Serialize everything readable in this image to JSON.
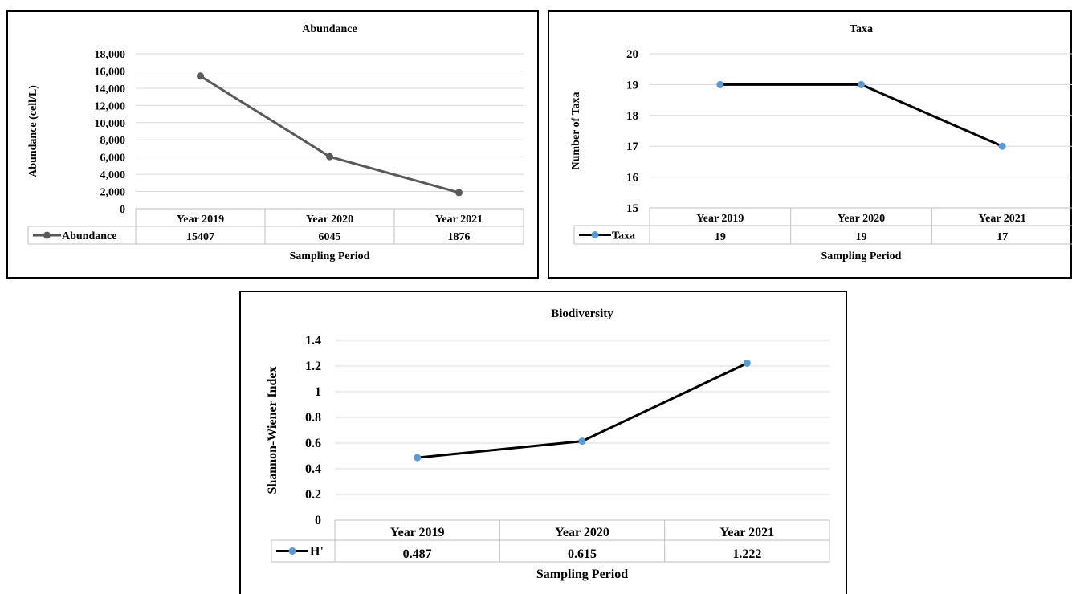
{
  "chart_data": [
    {
      "type": "line",
      "title": "Abundance",
      "xlabel": "Sampling Period",
      "ylabel": "Abundance (cell/L)",
      "categories": [
        "Year 2019",
        "Year 2020",
        "Year 2021"
      ],
      "ylim": [
        0,
        18000
      ],
      "yticks": [
        "0",
        "2,000",
        "4,000",
        "6,000",
        "8,000",
        "10,000",
        "12,000",
        "14,000",
        "16,000",
        "18,000"
      ],
      "series": [
        {
          "name": "Abundance",
          "values": [
            15407,
            6045,
            1876
          ],
          "table_values": [
            "15407",
            "6045",
            "1876"
          ],
          "color": "#595959",
          "marker_color": "#595959"
        }
      ],
      "grid": true,
      "legend": "data table"
    },
    {
      "type": "line",
      "title": "Taxa",
      "xlabel": "Sampling Period",
      "ylabel": "Number of Taxa",
      "categories": [
        "Year 2019",
        "Year 2020",
        "Year 2021"
      ],
      "ylim": [
        15,
        20
      ],
      "yticks": [
        "15",
        "16",
        "17",
        "18",
        "19",
        "20"
      ],
      "series": [
        {
          "name": "Taxa",
          "values": [
            19,
            19,
            17
          ],
          "table_values": [
            "19",
            "19",
            "17"
          ],
          "color": "#000000",
          "marker_color": "#5b9bd5"
        }
      ],
      "grid": true,
      "legend": "data table"
    },
    {
      "type": "line",
      "title": "Biodiversity",
      "xlabel": "Sampling Period",
      "ylabel": "Shannon-Wiener Index",
      "categories": [
        "Year 2019",
        "Year 2020",
        "Year 2021"
      ],
      "ylim": [
        0,
        1.4
      ],
      "yticks": [
        "0",
        "0.2",
        "0.4",
        "0.6",
        "0.8",
        "1",
        "1.2",
        "1.4"
      ],
      "series": [
        {
          "name": "H'",
          "values": [
            0.487,
            0.615,
            1.222
          ],
          "table_values": [
            "0.487",
            "0.615",
            "1.222"
          ],
          "color": "#000000",
          "marker_color": "#5b9bd5"
        }
      ],
      "grid": true,
      "legend": "data table"
    }
  ]
}
